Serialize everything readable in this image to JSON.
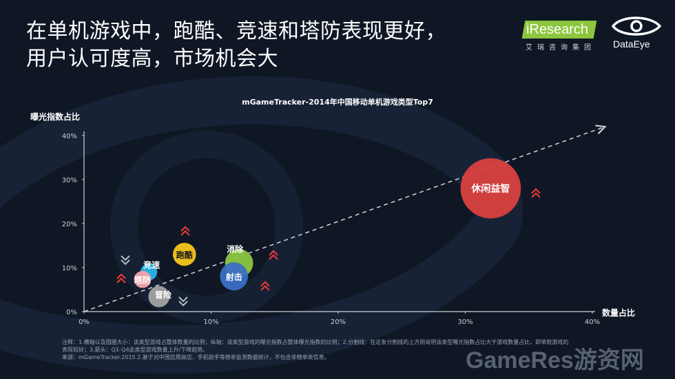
{
  "headline": {
    "line1": "在单机游戏中，跑酷、竞速和塔防表现更好，",
    "line2": "用户认可度高，市场机会大"
  },
  "logos": {
    "iresearch_name": "iResearch",
    "iresearch_sub": "艾瑞咨询集团",
    "dataeye_name": "DataEye"
  },
  "chart_data": {
    "type": "scatter",
    "title": "mGameTracker-2014年中国移动单机游戏类型Top7",
    "xlabel": "数量占比",
    "ylabel": "曝光指数占比",
    "xlim": [
      0,
      40
    ],
    "ylim": [
      0,
      40
    ],
    "xticks": [
      0,
      10,
      20,
      30,
      40
    ],
    "yticks": [
      0,
      10,
      20,
      30,
      40
    ],
    "xtick_labels": [
      "0%",
      "10%",
      "20%",
      "30%",
      "40%"
    ],
    "ytick_labels": [
      "0%",
      "10%",
      "20%",
      "30%",
      "40%"
    ],
    "grid": false,
    "points": [
      {
        "label": "休闲益智",
        "x": 32,
        "y": 28,
        "size": 30,
        "color": "#d9413f",
        "trend": "up"
      },
      {
        "label": "消除",
        "x": 12.2,
        "y": 11,
        "size": 6.5,
        "color": "#8cc63f",
        "trend": "up"
      },
      {
        "label": "射击",
        "x": 11.8,
        "y": 8,
        "size": 6.5,
        "color": "#3a6fc4",
        "trend": "up"
      },
      {
        "label": "跑酷",
        "x": 7.9,
        "y": 13,
        "size": 4.4,
        "color": "#f6c61b",
        "trend": "up"
      },
      {
        "label": "竞速",
        "x": 5.1,
        "y": 9,
        "size": 2.3,
        "color": "#29b6e8",
        "trend": "down"
      },
      {
        "label": "塔防",
        "x": 4.6,
        "y": 7.3,
        "size": 2.4,
        "color": "#f4a3a8",
        "trend": "up"
      },
      {
        "label": "冒险",
        "x": 5.9,
        "y": 3.4,
        "size": 3.7,
        "color": "#a3a3a3",
        "trend": "down"
      }
    ],
    "reference_line": {
      "from": [
        0,
        0
      ],
      "to": [
        41,
        42
      ],
      "style": "dashed"
    }
  },
  "footnote": {
    "line1": "注释：1.横轴以及圆圈大小：该类型游戏占整体数量的比例；纵轴：该类型游戏的曝光指数占整体曝光指数的比例；2.分割线：在这条分割线的上方则说明该类型曝光指数占比大于游戏数量占比，即单款游戏的",
    "line2": "表现较好；3.箭头：Q1-Q4此类型游戏数量上升/下降趋势。",
    "line3": "来源：mGameTracker.2015.2.基于对中国应用商店、手机助手等榜单监测数据统计，不包含非榜单类信息。"
  },
  "watermark": "GameRes游资网"
}
